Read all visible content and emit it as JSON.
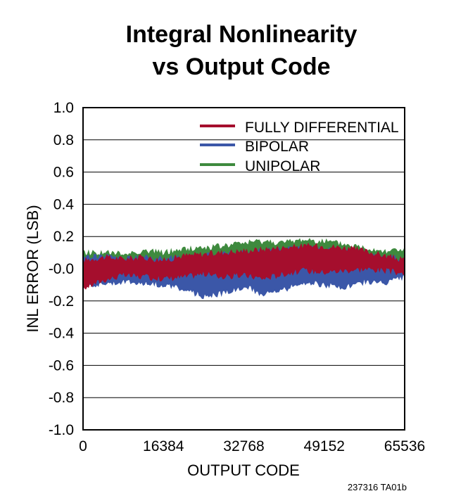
{
  "chart_data": {
    "type": "line",
    "title_line1": "Integral Nonlinearity",
    "title_line2": "vs Output Code",
    "xlabel": "OUTPUT CODE",
    "ylabel": "INL ERROR (LSB)",
    "xlim": [
      0,
      65536
    ],
    "ylim": [
      -1.0,
      1.0
    ],
    "xticks": [
      0,
      16384,
      32768,
      49152,
      65536
    ],
    "xtick_labels": [
      "0",
      "16384",
      "32768",
      "49152",
      "65536"
    ],
    "yticks": [
      1.0,
      0.8,
      0.6,
      0.4,
      0.2,
      0.0,
      -0.2,
      -0.4,
      -0.6,
      -0.8,
      -1.0
    ],
    "ytick_labels": [
      "1.0",
      "0.8",
      "0.6",
      "0.4",
      "0.2",
      "-0.0",
      "-0.2",
      "-0.4",
      "-0.6",
      "-0.8",
      "-1.0"
    ],
    "grid": true,
    "legend_position": "top-right",
    "x": [
      0,
      4096,
      8192,
      12288,
      16384,
      20480,
      24576,
      28672,
      32768,
      36864,
      40960,
      45056,
      49152,
      53248,
      57344,
      61440,
      65536
    ],
    "series": [
      {
        "name": "FULLY DIFFERENTIAL",
        "color": "#a50e2d",
        "upper": [
          0.05,
          0.07,
          0.06,
          0.07,
          0.05,
          0.08,
          0.09,
          0.1,
          0.11,
          0.12,
          0.13,
          0.14,
          0.14,
          0.13,
          0.11,
          0.08,
          0.05
        ],
        "lower": [
          -0.12,
          -0.07,
          -0.04,
          -0.05,
          -0.06,
          -0.05,
          -0.03,
          -0.05,
          -0.04,
          -0.06,
          -0.03,
          -0.01,
          -0.02,
          -0.01,
          0.0,
          -0.01,
          -0.03
        ]
      },
      {
        "name": "BIPOLAR",
        "color": "#3b57a8",
        "upper": [
          0.07,
          0.08,
          0.06,
          0.07,
          0.06,
          0.07,
          0.08,
          0.09,
          0.1,
          0.11,
          0.12,
          0.13,
          0.12,
          0.11,
          0.09,
          0.07,
          0.06
        ],
        "lower": [
          -0.1,
          -0.09,
          -0.08,
          -0.09,
          -0.1,
          -0.13,
          -0.17,
          -0.15,
          -0.11,
          -0.16,
          -0.13,
          -0.08,
          -0.1,
          -0.12,
          -0.08,
          -0.09,
          -0.05
        ]
      },
      {
        "name": "UNIPOLAR",
        "color": "#3e8a3e",
        "upper": [
          0.1,
          0.1,
          0.09,
          0.11,
          0.1,
          0.12,
          0.13,
          0.14,
          0.16,
          0.17,
          0.16,
          0.18,
          0.17,
          0.15,
          0.13,
          0.11,
          0.12
        ],
        "lower": [
          -0.02,
          0.0,
          0.01,
          0.0,
          -0.01,
          0.0,
          0.01,
          0.02,
          0.03,
          0.04,
          0.05,
          0.06,
          0.05,
          0.04,
          0.03,
          0.02,
          0.0
        ]
      }
    ],
    "note": "237316 TA01b"
  }
}
